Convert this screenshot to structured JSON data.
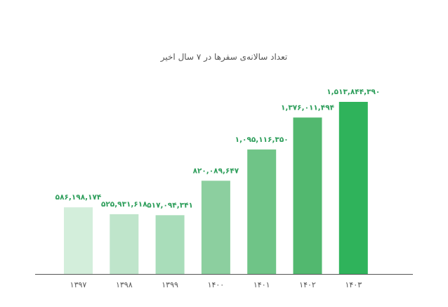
{
  "chart_data": {
    "type": "bar",
    "title": "تعداد سالانه‌ی سفرها در ۷ سال اخیر",
    "xlabel": "",
    "ylabel": "",
    "categories": [
      "۱۳۹۷",
      "۱۳۹۸",
      "۱۳۹۹",
      "۱۴۰۰",
      "۱۴۰۱",
      "۱۴۰۲",
      "۱۴۰۳"
    ],
    "values": [
      586198174,
      525931618,
      517094341,
      820089647,
      1095116350,
      1376011494,
      1513844390
    ],
    "value_labels": [
      "۵۸۶,۱۹۸,۱۷۴",
      "۵۲۵,۹۳۱,۶۱۸",
      "۵۱۷,۰۹۴,۳۴۱",
      "۸۲۰,۰۸۹,۶۴۷",
      "۱,۰۹۵,۱۱۶,۳۵۰",
      "۱,۳۷۶,۰۱۱,۴۹۴",
      "۱,۵۱۳,۸۴۴,۳۹۰"
    ],
    "ylim": [
      0,
      1513844390
    ],
    "grid": false,
    "legend": "none",
    "colors": {
      "bars": [
        "#d3eedb",
        "#bfe5cb",
        "#a9ddba",
        "#8ccf9f",
        "#6fc487",
        "#52b86f",
        "#2fb35b"
      ],
      "value_label": "#2e9e5b",
      "axis": "#555555",
      "tick_label": "#555555",
      "title": "#555555"
    }
  }
}
